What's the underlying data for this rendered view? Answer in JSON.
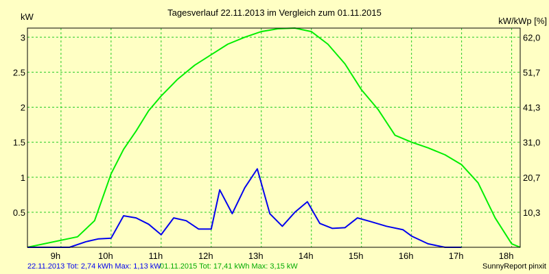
{
  "chart_data": {
    "type": "line",
    "title": "Tagesverlauf 22.11.2013 im Vergleich zum 01.11.2015",
    "left_unit": "kW",
    "right_unit": "kW/kWp [%]",
    "x_ticks": [
      "9h",
      "10h",
      "11h",
      "12h",
      "13h",
      "14h",
      "15h",
      "16h",
      "17h",
      "18h"
    ],
    "y_ticks_left": [
      "0.5",
      "1",
      "1.5",
      "2",
      "2.5",
      "3"
    ],
    "y_ticks_right": [
      "10,3",
      "20,7",
      "31,0",
      "41,3",
      "51,7",
      "62,0"
    ],
    "xlim": [
      8.33,
      18.17
    ],
    "ylim": [
      0,
      3.13
    ],
    "grid": true,
    "series": [
      {
        "name": "01.11.2015",
        "color": "#00ee00",
        "points": [
          [
            8.33,
            0.0
          ],
          [
            9.33,
            0.15
          ],
          [
            9.67,
            0.38
          ],
          [
            10.0,
            1.05
          ],
          [
            10.25,
            1.4
          ],
          [
            10.5,
            1.66
          ],
          [
            10.75,
            1.95
          ],
          [
            11.0,
            2.16
          ],
          [
            11.33,
            2.4
          ],
          [
            11.67,
            2.6
          ],
          [
            12.0,
            2.75
          ],
          [
            12.33,
            2.9
          ],
          [
            12.67,
            3.0
          ],
          [
            13.0,
            3.08
          ],
          [
            13.33,
            3.12
          ],
          [
            13.67,
            3.13
          ],
          [
            14.0,
            3.08
          ],
          [
            14.33,
            2.9
          ],
          [
            14.67,
            2.62
          ],
          [
            15.0,
            2.25
          ],
          [
            15.33,
            1.97
          ],
          [
            15.67,
            1.6
          ],
          [
            16.0,
            1.5
          ],
          [
            16.33,
            1.42
          ],
          [
            16.67,
            1.32
          ],
          [
            17.0,
            1.18
          ],
          [
            17.33,
            0.92
          ],
          [
            17.67,
            0.42
          ],
          [
            18.0,
            0.05
          ],
          [
            18.17,
            0.0
          ]
        ]
      },
      {
        "name": "22.11.2013",
        "color": "#0000ee",
        "points": [
          [
            8.33,
            0.0
          ],
          [
            9.17,
            0.0
          ],
          [
            9.5,
            0.08
          ],
          [
            9.75,
            0.12
          ],
          [
            10.0,
            0.13
          ],
          [
            10.25,
            0.45
          ],
          [
            10.5,
            0.42
          ],
          [
            10.75,
            0.33
          ],
          [
            11.0,
            0.18
          ],
          [
            11.25,
            0.42
          ],
          [
            11.5,
            0.38
          ],
          [
            11.75,
            0.26
          ],
          [
            12.0,
            0.26
          ],
          [
            12.17,
            0.82
          ],
          [
            12.42,
            0.48
          ],
          [
            12.67,
            0.85
          ],
          [
            12.92,
            1.12
          ],
          [
            13.17,
            0.48
          ],
          [
            13.42,
            0.3
          ],
          [
            13.67,
            0.5
          ],
          [
            13.92,
            0.65
          ],
          [
            14.17,
            0.34
          ],
          [
            14.42,
            0.27
          ],
          [
            14.67,
            0.28
          ],
          [
            14.92,
            0.42
          ],
          [
            15.17,
            0.37
          ],
          [
            15.5,
            0.3
          ],
          [
            15.83,
            0.25
          ],
          [
            16.0,
            0.16
          ],
          [
            16.33,
            0.05
          ],
          [
            16.67,
            0.0
          ],
          [
            17.0,
            0.0
          ]
        ]
      }
    ]
  },
  "footer": {
    "series1_text": "22.11.2013 Tot: 2,74 kWh Max: 1,13 kW",
    "series2_text": "01.11.2015 Tot: 17,41 kWh Max: 3,15 kW",
    "credit": "SunnyReport pinxit"
  }
}
